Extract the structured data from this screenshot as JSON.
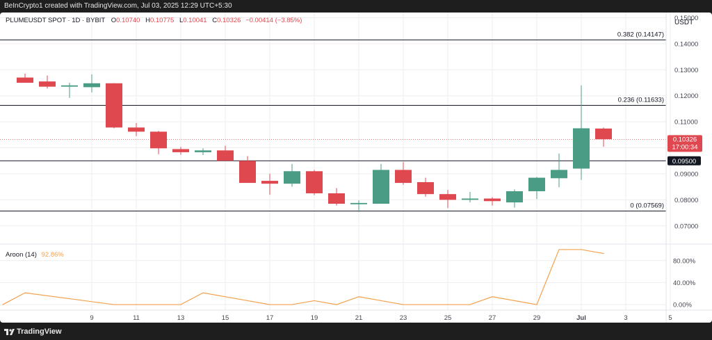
{
  "header": {
    "creator_line": "BeInCrypto1 created with TradingView.com, Jul 03, 2025 12:29 UTC+5:30"
  },
  "legend": {
    "symbol": "PLUMEUSDT SPOT · 1D · BYBIT",
    "o_label": "O",
    "o_value": "0.10740",
    "h_label": "H",
    "h_value": "0.10775",
    "l_label": "L",
    "l_value": "0.10041",
    "c_label": "C",
    "c_value": "0.10326",
    "change": "−0.00414 (−3.85%)"
  },
  "currency": "USDT",
  "indicator": {
    "name": "Aroon (14)",
    "value": "92.86%"
  },
  "footer": {
    "brand": "TradingView"
  },
  "colors": {
    "up": "#4a9c85",
    "down": "#e0484f",
    "aroon": "#f5a04a",
    "grid": "#eeeeee",
    "text": "#131722",
    "axis_text": "#434651"
  },
  "chart_data": [
    {
      "type": "candlestick",
      "x_tick_labels": [
        "9",
        "11",
        "13",
        "15",
        "17",
        "19",
        "21",
        "23",
        "25",
        "27",
        "29",
        "Jul",
        "3",
        "5"
      ],
      "ylim": [
        0.063,
        0.152
      ],
      "y_tick_labels": [
        "0.07000",
        "0.08000",
        "0.09000",
        "0.10000",
        "0.11000",
        "0.12000",
        "0.13000",
        "0.14000",
        "0.15000"
      ],
      "y_ticks": [
        0.07,
        0.08,
        0.09,
        0.1,
        0.11,
        0.12,
        0.13,
        0.14,
        0.15
      ],
      "current_price": {
        "value": 0.10326,
        "label": "0.10326",
        "countdown": "17:00:34"
      },
      "horizontal_levels": [
        {
          "value": 0.14147,
          "label": "0.382 (0.14147)"
        },
        {
          "value": 0.11633,
          "label": "0.236 (0.11633)"
        },
        {
          "value": 0.095,
          "label": "",
          "axis_label": "0.09500"
        },
        {
          "value": 0.07569,
          "label": "0 (0.07569)"
        }
      ],
      "candles": [
        {
          "day": 6,
          "o": 0.127,
          "h": 0.1285,
          "l": 0.125,
          "c": 0.125
        },
        {
          "day": 7,
          "o": 0.1255,
          "h": 0.1278,
          "l": 0.1228,
          "c": 0.1235
        },
        {
          "day": 8,
          "o": 0.1235,
          "h": 0.125,
          "l": 0.1192,
          "c": 0.124
        },
        {
          "day": 9,
          "o": 0.1233,
          "h": 0.1282,
          "l": 0.1213,
          "c": 0.1248
        },
        {
          "day": 10,
          "o": 0.1248,
          "h": 0.1248,
          "l": 0.1075,
          "c": 0.1078
        },
        {
          "day": 11,
          "o": 0.1078,
          "h": 0.1095,
          "l": 0.1045,
          "c": 0.1062
        },
        {
          "day": 12,
          "o": 0.1062,
          "h": 0.1065,
          "l": 0.0975,
          "c": 0.0998
        },
        {
          "day": 13,
          "o": 0.0995,
          "h": 0.1003,
          "l": 0.0973,
          "c": 0.0983
        },
        {
          "day": 14,
          "o": 0.0983,
          "h": 0.0998,
          "l": 0.0972,
          "c": 0.099
        },
        {
          "day": 15,
          "o": 0.099,
          "h": 0.1008,
          "l": 0.0952,
          "c": 0.095
        },
        {
          "day": 16,
          "o": 0.095,
          "h": 0.0968,
          "l": 0.087,
          "c": 0.0865
        },
        {
          "day": 17,
          "o": 0.0873,
          "h": 0.09,
          "l": 0.082,
          "c": 0.0862
        },
        {
          "day": 18,
          "o": 0.0862,
          "h": 0.0938,
          "l": 0.085,
          "c": 0.091
        },
        {
          "day": 19,
          "o": 0.091,
          "h": 0.0915,
          "l": 0.0818,
          "c": 0.0825
        },
        {
          "day": 20,
          "o": 0.0825,
          "h": 0.0845,
          "l": 0.0778,
          "c": 0.0785
        },
        {
          "day": 21,
          "o": 0.0783,
          "h": 0.0798,
          "l": 0.0753,
          "c": 0.0788
        },
        {
          "day": 22,
          "o": 0.0785,
          "h": 0.0938,
          "l": 0.0785,
          "c": 0.0915
        },
        {
          "day": 23,
          "o": 0.0915,
          "h": 0.0945,
          "l": 0.0858,
          "c": 0.0865
        },
        {
          "day": 24,
          "o": 0.0868,
          "h": 0.0885,
          "l": 0.0812,
          "c": 0.0822
        },
        {
          "day": 25,
          "o": 0.0822,
          "h": 0.0838,
          "l": 0.0768,
          "c": 0.08
        },
        {
          "day": 26,
          "o": 0.08,
          "h": 0.083,
          "l": 0.079,
          "c": 0.0805
        },
        {
          "day": 27,
          "o": 0.0805,
          "h": 0.081,
          "l": 0.0778,
          "c": 0.0795
        },
        {
          "day": 28,
          "o": 0.079,
          "h": 0.084,
          "l": 0.077,
          "c": 0.0833
        },
        {
          "day": 29,
          "o": 0.0833,
          "h": 0.0888,
          "l": 0.0803,
          "c": 0.0885
        },
        {
          "day": 30,
          "o": 0.0883,
          "h": 0.0978,
          "l": 0.0848,
          "c": 0.0915
        },
        {
          "day": 31,
          "o": 0.092,
          "h": 0.124,
          "l": 0.0877,
          "c": 0.1075
        },
        {
          "day": 32,
          "o": 0.1074,
          "h": 0.1078,
          "l": 0.1004,
          "c": 0.1033
        }
      ]
    },
    {
      "type": "line",
      "title": "Aroon (14)",
      "ylim": [
        -10,
        110
      ],
      "y_tick_labels": [
        "0.00%",
        "40.00%",
        "80.00%"
      ],
      "y_ticks": [
        0,
        40,
        80
      ],
      "series": [
        {
          "name": "Aroon (14)",
          "points": [
            [
              5,
              0
            ],
            [
              6,
              21.4
            ],
            [
              10,
              0
            ],
            [
              11,
              0
            ],
            [
              13,
              0
            ],
            [
              14,
              21.4
            ],
            [
              16,
              7.1
            ],
            [
              17,
              0
            ],
            [
              18,
              0
            ],
            [
              19,
              7.1
            ],
            [
              20,
              0
            ],
            [
              21,
              14.3
            ],
            [
              22,
              7.1
            ],
            [
              23,
              0
            ],
            [
              24,
              0
            ],
            [
              25,
              0
            ],
            [
              26,
              0
            ],
            [
              27,
              14.3
            ],
            [
              29,
              0
            ],
            [
              30,
              100
            ],
            [
              31,
              100
            ],
            [
              32,
              92.86
            ]
          ]
        }
      ]
    }
  ]
}
